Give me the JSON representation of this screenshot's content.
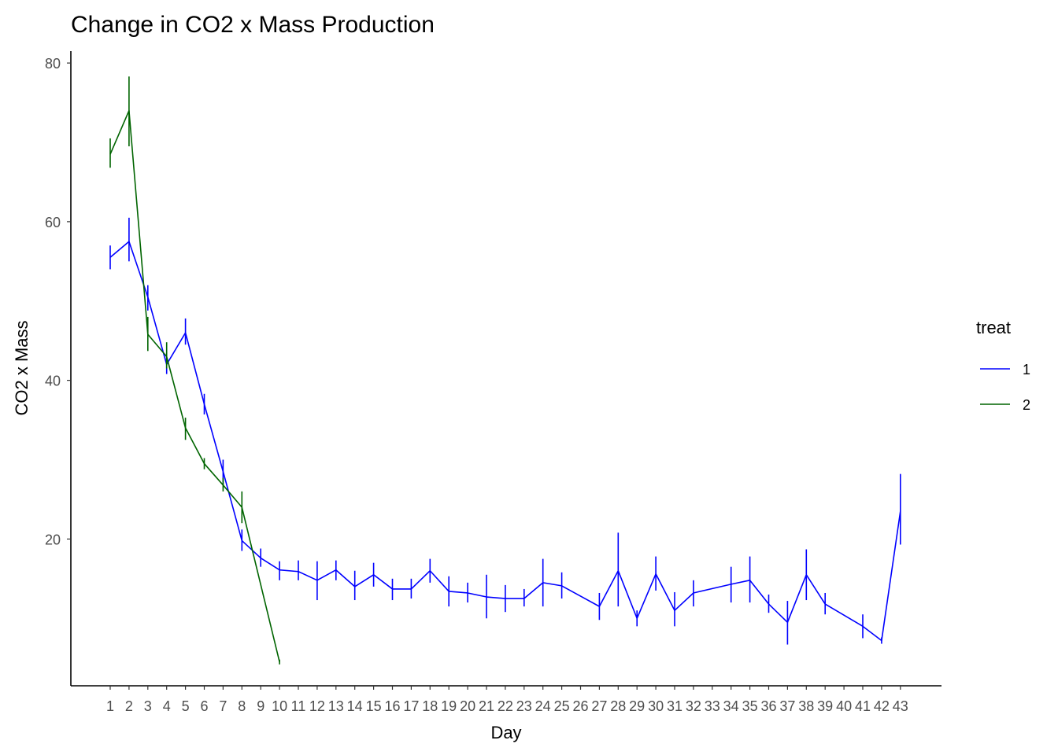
{
  "chart_data": {
    "type": "line",
    "title": "Change in CO2 x Mass Production",
    "xlabel": "Day",
    "ylabel": "CO2 x Mass",
    "x_categories": [
      "1",
      "2",
      "3",
      "4",
      "5",
      "6",
      "7",
      "8",
      "9",
      "10",
      "11",
      "12",
      "13",
      "14",
      "15",
      "16",
      "17",
      "18",
      "19",
      "20",
      "21",
      "22",
      "23",
      "24",
      "25",
      "26",
      "27",
      "28",
      "29",
      "30",
      "31",
      "32",
      "33",
      "34",
      "35",
      "36",
      "37",
      "38",
      "39",
      "40",
      "41",
      "42",
      "43"
    ],
    "ylim": [
      1.5,
      81.5
    ],
    "yticks": [
      20,
      40,
      60,
      80
    ],
    "ytick_labels": [
      "20",
      "40",
      "60",
      "80"
    ],
    "grid": false,
    "legend": {
      "title": "treat",
      "position": "right"
    },
    "series": [
      {
        "name": "1",
        "color": "#0000ff",
        "points": [
          {
            "x": "1",
            "y": 55.5,
            "low": 54.0,
            "high": 57.0
          },
          {
            "x": "2",
            "y": 57.5,
            "low": 55.0,
            "high": 60.5
          },
          {
            "x": "3",
            "y": 50.5,
            "low": 48.8,
            "high": 52.0
          },
          {
            "x": "4",
            "y": 42.0,
            "low": 40.8,
            "high": 43.5
          },
          {
            "x": "5",
            "y": 46.0,
            "low": 44.5,
            "high": 47.8
          },
          {
            "x": "6",
            "y": 37.0,
            "low": 35.7,
            "high": 38.3
          },
          {
            "x": "7",
            "y": 28.5,
            "low": 26.8,
            "high": 30.0
          },
          {
            "x": "8",
            "y": 19.8,
            "low": 18.5,
            "high": 21.2
          },
          {
            "x": "9",
            "y": 17.6,
            "low": 16.5,
            "high": 18.8
          },
          {
            "x": "10",
            "y": 16.1,
            "low": 14.8,
            "high": 17.2
          },
          {
            "x": "11",
            "y": 15.9,
            "low": 14.8,
            "high": 17.3
          },
          {
            "x": "12",
            "y": 14.8,
            "low": 12.3,
            "high": 17.2
          },
          {
            "x": "13",
            "y": 16.1,
            "low": 14.8,
            "high": 17.3
          },
          {
            "x": "14",
            "y": 14.0,
            "low": 12.3,
            "high": 16.0
          },
          {
            "x": "15",
            "y": 15.5,
            "low": 14.0,
            "high": 17.0
          },
          {
            "x": "16",
            "y": 13.7,
            "low": 12.3,
            "high": 15.0
          },
          {
            "x": "17",
            "y": 13.7,
            "low": 12.5,
            "high": 15.0
          },
          {
            "x": "18",
            "y": 16.0,
            "low": 14.5,
            "high": 17.5
          },
          {
            "x": "19",
            "y": 13.4,
            "low": 11.5,
            "high": 15.3
          },
          {
            "x": "20",
            "y": 13.2,
            "low": 12.0,
            "high": 14.5
          },
          {
            "x": "21",
            "y": 12.7,
            "low": 10.0,
            "high": 15.5
          },
          {
            "x": "22",
            "y": 12.5,
            "low": 10.8,
            "high": 14.2
          },
          {
            "x": "23",
            "y": 12.5,
            "low": 11.5,
            "high": 13.7
          },
          {
            "x": "24",
            "y": 14.5,
            "low": 11.5,
            "high": 17.5
          },
          {
            "x": "25",
            "y": 14.1,
            "low": 12.5,
            "high": 15.8
          },
          {
            "x": "27",
            "y": 11.5,
            "low": 9.8,
            "high": 13.2
          },
          {
            "x": "28",
            "y": 16.0,
            "low": 11.5,
            "high": 20.8
          },
          {
            "x": "29",
            "y": 10.0,
            "low": 9.0,
            "high": 11.0
          },
          {
            "x": "30",
            "y": 15.6,
            "low": 13.5,
            "high": 17.8
          },
          {
            "x": "31",
            "y": 11.0,
            "low": 9.0,
            "high": 13.3
          },
          {
            "x": "32",
            "y": 13.2,
            "low": 11.5,
            "high": 14.8
          },
          {
            "x": "34",
            "y": 14.3,
            "low": 12.0,
            "high": 16.5
          },
          {
            "x": "35",
            "y": 14.8,
            "low": 12.0,
            "high": 17.8
          },
          {
            "x": "36",
            "y": 11.8,
            "low": 10.7,
            "high": 13.0
          },
          {
            "x": "37",
            "y": 9.5,
            "low": 6.7,
            "high": 12.2
          },
          {
            "x": "38",
            "y": 15.5,
            "low": 12.3,
            "high": 18.7
          },
          {
            "x": "39",
            "y": 11.8,
            "low": 10.5,
            "high": 13.2
          },
          {
            "x": "41",
            "y": 9.0,
            "low": 7.5,
            "high": 10.5
          },
          {
            "x": "42",
            "y": 7.2,
            "low": 6.8,
            "high": 7.6
          },
          {
            "x": "43",
            "y": 23.5,
            "low": 19.3,
            "high": 28.2
          }
        ]
      },
      {
        "name": "2",
        "color": "#006400",
        "points": [
          {
            "x": "1",
            "y": 68.5,
            "low": 66.8,
            "high": 70.5
          },
          {
            "x": "2",
            "y": 74.0,
            "low": 69.5,
            "high": 78.3
          },
          {
            "x": "3",
            "y": 45.8,
            "low": 43.7,
            "high": 48.0
          },
          {
            "x": "4",
            "y": 43.0,
            "low": 41.5,
            "high": 44.8
          },
          {
            "x": "5",
            "y": 34.0,
            "low": 32.5,
            "high": 35.3
          },
          {
            "x": "6",
            "y": 29.5,
            "low": 28.8,
            "high": 30.2
          },
          {
            "x": "7",
            "y": 26.8,
            "low": 26.0,
            "high": 27.7
          },
          {
            "x": "8",
            "y": 24.0,
            "low": 22.0,
            "high": 26.0
          },
          {
            "x": "10",
            "y": 4.5,
            "low": 4.2,
            "high": 4.8
          }
        ]
      }
    ]
  }
}
